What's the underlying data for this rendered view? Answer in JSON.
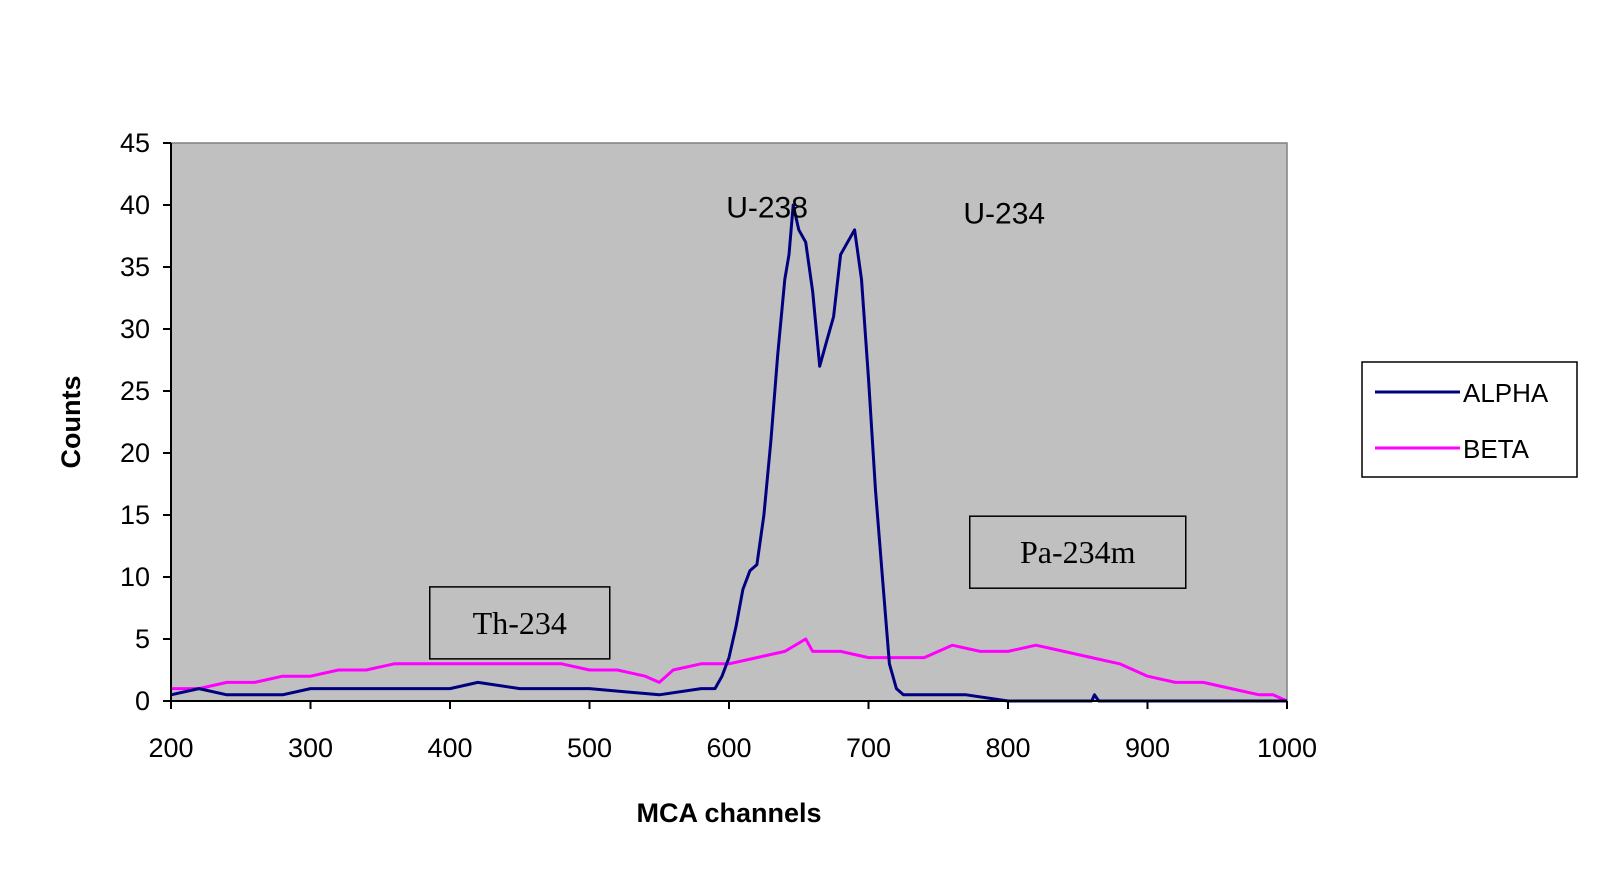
{
  "chart_data": {
    "type": "line",
    "title": "",
    "xlabel": "MCA channels",
    "ylabel": "Counts",
    "xlim": [
      200,
      1000
    ],
    "ylim": [
      0,
      45
    ],
    "x_ticks": [
      "200",
      "300",
      "400",
      "500",
      "600",
      "700",
      "800",
      "900",
      "1000"
    ],
    "y_ticks": [
      "0",
      "5",
      "10",
      "15",
      "20",
      "25",
      "30",
      "35",
      "40",
      "45"
    ],
    "grid": false,
    "legend_position": "right",
    "plot_background": "#c0c0c0",
    "series": [
      {
        "name": "ALPHA",
        "color": "#000080",
        "points": [
          [
            200,
            0.5
          ],
          [
            220,
            1
          ],
          [
            240,
            0.5
          ],
          [
            260,
            0.5
          ],
          [
            280,
            0.5
          ],
          [
            300,
            1
          ],
          [
            350,
            1
          ],
          [
            400,
            1
          ],
          [
            420,
            1.5
          ],
          [
            450,
            1
          ],
          [
            500,
            1
          ],
          [
            550,
            0.5
          ],
          [
            580,
            1
          ],
          [
            590,
            1
          ],
          [
            595,
            2
          ],
          [
            600,
            3.5
          ],
          [
            605,
            6
          ],
          [
            610,
            9
          ],
          [
            615,
            10.5
          ],
          [
            620,
            11
          ],
          [
            625,
            15
          ],
          [
            630,
            21
          ],
          [
            635,
            28
          ],
          [
            640,
            34
          ],
          [
            643,
            36
          ],
          [
            646,
            40
          ],
          [
            650,
            38
          ],
          [
            655,
            37
          ],
          [
            660,
            33
          ],
          [
            665,
            27
          ],
          [
            670,
            29
          ],
          [
            675,
            31
          ],
          [
            680,
            36
          ],
          [
            685,
            37
          ],
          [
            690,
            38
          ],
          [
            695,
            34
          ],
          [
            700,
            26
          ],
          [
            705,
            17
          ],
          [
            710,
            10
          ],
          [
            715,
            3
          ],
          [
            720,
            1
          ],
          [
            725,
            0.5
          ],
          [
            750,
            0.5
          ],
          [
            770,
            0.5
          ],
          [
            800,
            0
          ],
          [
            860,
            0
          ],
          [
            862,
            0.5
          ],
          [
            865,
            0
          ],
          [
            1000,
            0
          ]
        ]
      },
      {
        "name": "BETA",
        "color": "#ff00ff",
        "points": [
          [
            200,
            1
          ],
          [
            220,
            1
          ],
          [
            240,
            1.5
          ],
          [
            260,
            1.5
          ],
          [
            280,
            2
          ],
          [
            300,
            2
          ],
          [
            320,
            2.5
          ],
          [
            340,
            2.5
          ],
          [
            360,
            3
          ],
          [
            380,
            3
          ],
          [
            400,
            3
          ],
          [
            420,
            3
          ],
          [
            440,
            3
          ],
          [
            460,
            3
          ],
          [
            480,
            3
          ],
          [
            500,
            2.5
          ],
          [
            520,
            2.5
          ],
          [
            540,
            2
          ],
          [
            550,
            1.5
          ],
          [
            560,
            2.5
          ],
          [
            580,
            3
          ],
          [
            600,
            3
          ],
          [
            620,
            3.5
          ],
          [
            640,
            4
          ],
          [
            655,
            5
          ],
          [
            660,
            4
          ],
          [
            680,
            4
          ],
          [
            700,
            3.5
          ],
          [
            720,
            3.5
          ],
          [
            740,
            3.5
          ],
          [
            760,
            4.5
          ],
          [
            780,
            4
          ],
          [
            800,
            4
          ],
          [
            820,
            4.5
          ],
          [
            840,
            4
          ],
          [
            860,
            3.5
          ],
          [
            880,
            3
          ],
          [
            900,
            2
          ],
          [
            920,
            1.5
          ],
          [
            940,
            1.5
          ],
          [
            960,
            1
          ],
          [
            980,
            0.5
          ],
          [
            990,
            0.5
          ],
          [
            1000,
            0
          ]
        ]
      }
    ],
    "annotations": [
      {
        "text": "U-238",
        "x": 598,
        "y": 39
      },
      {
        "text": "U-234",
        "x": 768,
        "y": 38.5
      }
    ],
    "boxed_annotations": [
      {
        "text": "Th-234",
        "x": 450,
        "y": 6.3
      },
      {
        "text": "Pa-234m",
        "x": 850,
        "y": 12
      }
    ]
  }
}
